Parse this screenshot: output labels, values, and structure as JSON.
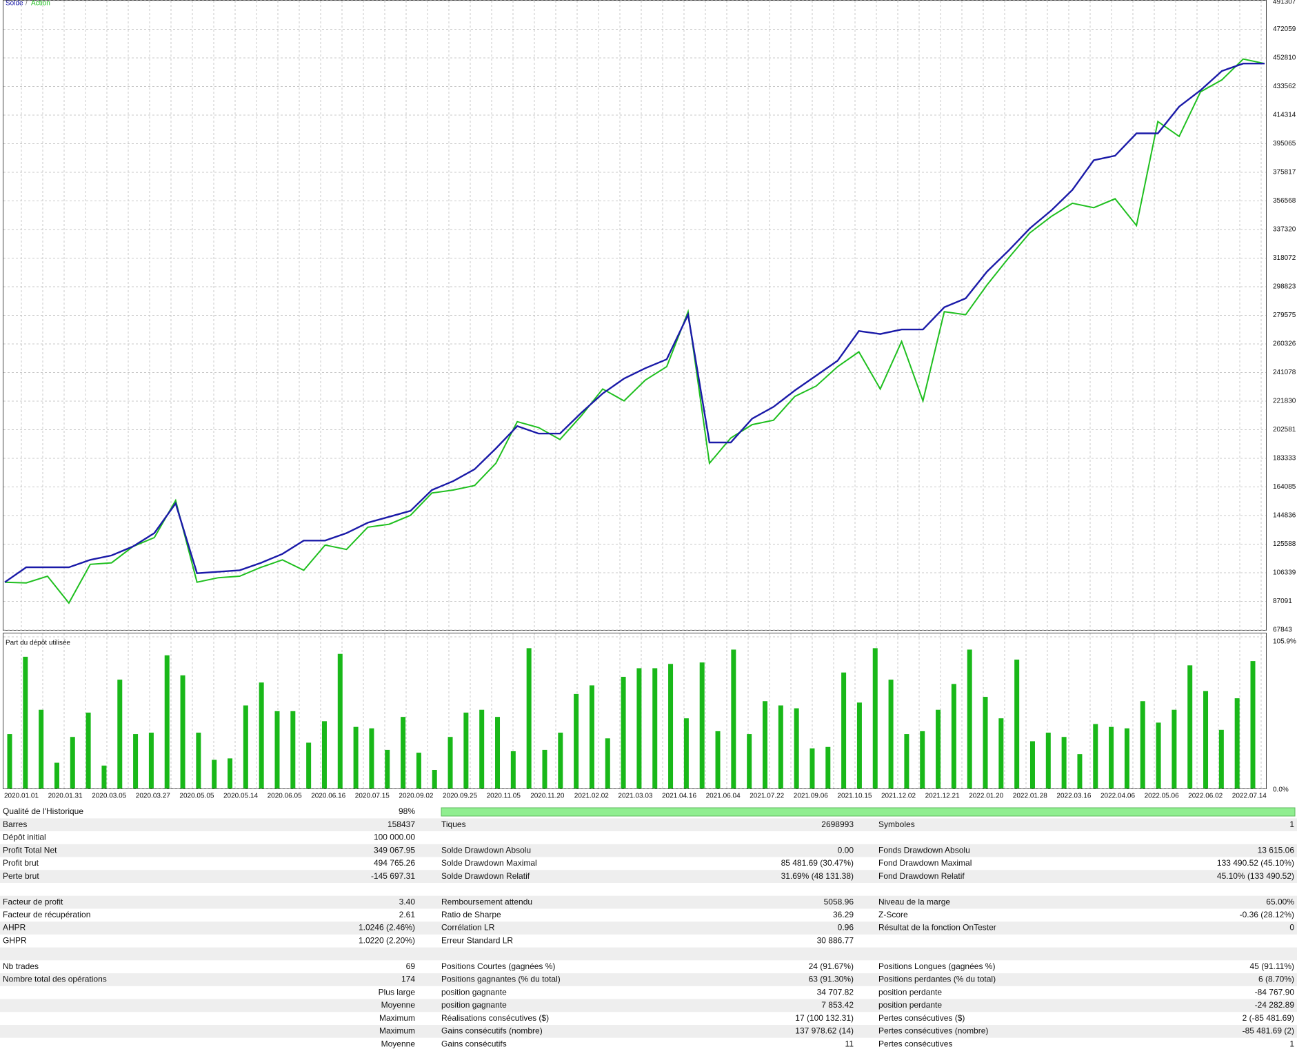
{
  "chart_data": [
    {
      "type": "line",
      "legend_separator": "/",
      "series": [
        {
          "name": "Solde",
          "color": "#1a1aa8",
          "values": [
            100000,
            110000,
            110000,
            110000,
            115000,
            118000,
            124000,
            133000,
            153000,
            106000,
            107000,
            108000,
            113000,
            119000,
            128000,
            128000,
            133000,
            140000,
            144000,
            148000,
            162000,
            168000,
            176000,
            190000,
            205000,
            200000,
            200000,
            214000,
            227000,
            237000,
            244000,
            250000,
            280000,
            194000,
            194000,
            210000,
            218000,
            229000,
            239000,
            249000,
            269000,
            267000,
            270000,
            270000,
            285000,
            291000,
            309000,
            323000,
            338000,
            350000,
            364000,
            384000,
            387000,
            402000,
            402000,
            420000,
            431000,
            444000,
            449000,
            449000
          ]
        },
        {
          "name": "Action",
          "color": "#1fbf1f",
          "values": [
            100000,
            99500,
            104000,
            86000,
            112000,
            113000,
            124000,
            130000,
            155000,
            100000,
            103000,
            104000,
            110000,
            115000,
            108000,
            125000,
            122000,
            137000,
            139000,
            145000,
            160000,
            162000,
            165000,
            180000,
            208000,
            204000,
            196000,
            212000,
            230000,
            222000,
            236000,
            245000,
            282000,
            180000,
            197000,
            206000,
            209000,
            225000,
            232000,
            245000,
            255000,
            230000,
            262000,
            222000,
            282000,
            280000,
            300000,
            318000,
            335000,
            346000,
            355000,
            352000,
            358000,
            340000,
            410000,
            400000,
            430000,
            438000,
            452000,
            449000
          ]
        }
      ],
      "ylim": [
        67843,
        491307
      ],
      "yticks": [
        67843,
        87091,
        106339,
        125588,
        144836,
        164085,
        183333,
        202581,
        221830,
        241078,
        260326,
        279575,
        298823,
        318072,
        337320,
        356568,
        375817,
        395065,
        414314,
        433562,
        452810,
        472059,
        491307
      ],
      "grid": true
    },
    {
      "type": "bar",
      "title": "Part du dépôt utilisée",
      "color": "#19b819",
      "values": [
        38,
        92,
        55,
        18,
        36,
        53,
        16,
        76,
        38,
        39,
        93,
        79,
        39,
        20,
        21,
        58,
        74,
        54,
        54,
        32,
        47,
        94,
        43,
        42,
        27,
        50,
        25,
        13,
        36,
        53,
        55,
        50,
        26,
        98,
        27,
        39,
        66,
        72,
        35,
        78,
        84,
        84,
        87,
        49,
        88,
        40,
        97,
        38,
        61,
        58,
        56,
        28,
        29,
        81,
        60,
        98,
        76,
        38,
        40,
        55,
        73,
        97,
        64,
        49,
        90,
        33,
        39,
        36,
        24,
        45,
        43,
        42,
        61,
        46,
        55,
        86,
        68,
        41,
        63,
        89
      ],
      "ylim": [
        0,
        105.9
      ],
      "yticks": [
        {
          "value": 0,
          "label": "0.0%"
        },
        {
          "value": 105.9,
          "label": "105.9%"
        }
      ],
      "grid": true
    }
  ],
  "x_axis_labels": [
    "2020.01.01",
    "2020.01.31",
    "2020.03.05",
    "2020.03.27",
    "2020.05.05",
    "2020.05.14",
    "2020.06.05",
    "2020.06.16",
    "2020.07.15",
    "2020.09.02",
    "2020.09.25",
    "2020.11.05",
    "2020.11.20",
    "2021.02.02",
    "2021.03.03",
    "2021.04.16",
    "2021.06.04",
    "2021.07.22",
    "2021.09.06",
    "2021.10.15",
    "2021.12.02",
    "2021.12.21",
    "2022.01.20",
    "2022.01.28",
    "2022.03.16",
    "2022.04.06",
    "2022.05.06",
    "2022.06.02",
    "2022.07.14"
  ],
  "report": {
    "rows": [
      [
        "Qualité de l'Historique",
        "98%"
      ],
      [
        "Barres",
        "158437",
        "Tiques",
        "2698993",
        "Symboles",
        "1"
      ],
      [
        "Dépôt initial",
        "100 000.00"
      ],
      [
        "Profit Total Net",
        "349 067.95",
        "Solde Drawdown Absolu",
        "0.00",
        "Fonds Drawdown Absolu",
        "13 615.06"
      ],
      [
        "Profit brut",
        "494 765.26",
        "Solde Drawdown Maximal",
        "85 481.69 (30.47%)",
        "Fond Drawdown Maximal",
        "133 490.52 (45.10%)"
      ],
      [
        "Perte brut",
        "-145 697.31",
        "Solde Drawdown Relatif",
        "31.69% (48 131.38)",
        "Fond Drawdown Relatif",
        "45.10% (133 490.52)"
      ],
      [],
      [
        "Facteur de profit",
        "3.40",
        "Remboursement attendu",
        "5058.96",
        "Niveau de la marge",
        "65.00%"
      ],
      [
        "Facteur de récupération",
        "2.61",
        "Ratio de Sharpe",
        "36.29",
        "Z-Score",
        "-0.36 (28.12%)"
      ],
      [
        "AHPR",
        "1.0246 (2.46%)",
        "Corrélation LR",
        "0.96",
        "Résultat de la fonction OnTester",
        "0"
      ],
      [
        "GHPR",
        "1.0220 (2.20%)",
        "Erreur Standard LR",
        "30 886.77"
      ],
      [],
      [
        "Nb trades",
        "69",
        "Positions Courtes (gagnées %)",
        "24 (91.67%)",
        "Positions Longues (gagnées %)",
        "45 (91.11%)"
      ],
      [
        "Nombre total des opérations",
        "174",
        "Positions gagnantes (% du total)",
        "63 (91.30%)",
        "Positions perdantes (% du total)",
        "6 (8.70%)"
      ],
      [
        null,
        "Plus large",
        "position gagnante",
        "34 707.82",
        "position perdante",
        "-84 767.90"
      ],
      [
        null,
        "Moyenne",
        "position gagnante",
        "7 853.42",
        "position perdante",
        "-24 282.89"
      ],
      [
        null,
        "Maximum",
        "Réalisations consécutives ($)",
        "17 (100 132.31)",
        "Pertes consécutives ($)",
        "2 (-85 481.69)"
      ],
      [
        null,
        "Maximum",
        "Gains consécutifs (nombre)",
        "137 978.62 (14)",
        "Pertes consécutives (nombre)",
        "-85 481.69 (2)"
      ],
      [
        null,
        "Moyenne",
        "Gains consécutifs",
        "11",
        "Pertes consécutives",
        "1"
      ]
    ]
  }
}
